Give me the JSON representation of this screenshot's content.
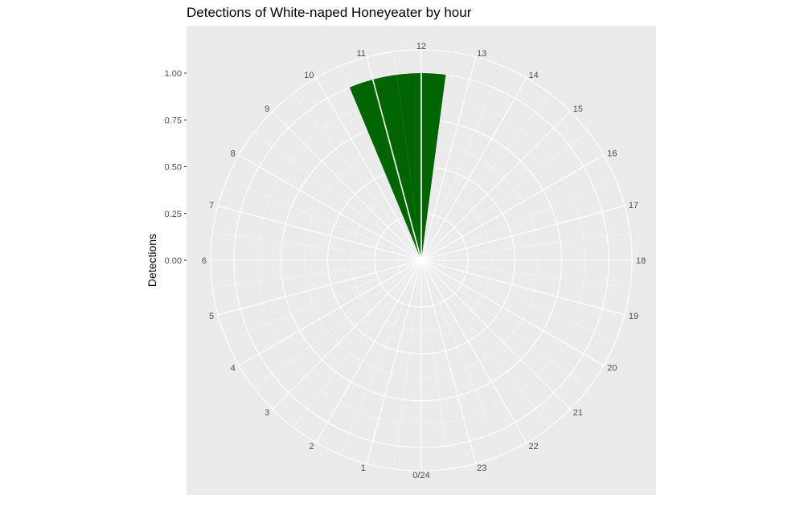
{
  "chart_data": {
    "type": "bar",
    "coordinate_system": "polar",
    "title": "Detections of White-naped Honeyeater by hour",
    "ylabel": "Detections",
    "xlabel": "",
    "ylim": [
      0,
      1
    ],
    "y_ticks": [
      "0.00",
      "0.25",
      "0.50",
      "0.75",
      "1.00"
    ],
    "y_tick_values": [
      0,
      0.25,
      0.5,
      0.75,
      1
    ],
    "categories": [
      "0/24",
      "1",
      "2",
      "3",
      "4",
      "5",
      "6",
      "7",
      "8",
      "9",
      "10",
      "11",
      "12",
      "13",
      "14",
      "15",
      "16",
      "17",
      "18",
      "19",
      "20",
      "21",
      "22",
      "23"
    ],
    "values": [
      0,
      0,
      0,
      0,
      0,
      0,
      0,
      0,
      0,
      0,
      0,
      1,
      1,
      0,
      0,
      0,
      0,
      0,
      0,
      0,
      0,
      0,
      0,
      0
    ],
    "bar_color": "#006400",
    "panel_background": "#ebebeb",
    "grid_color": "#ffffff",
    "grid": true,
    "legend": "none"
  }
}
